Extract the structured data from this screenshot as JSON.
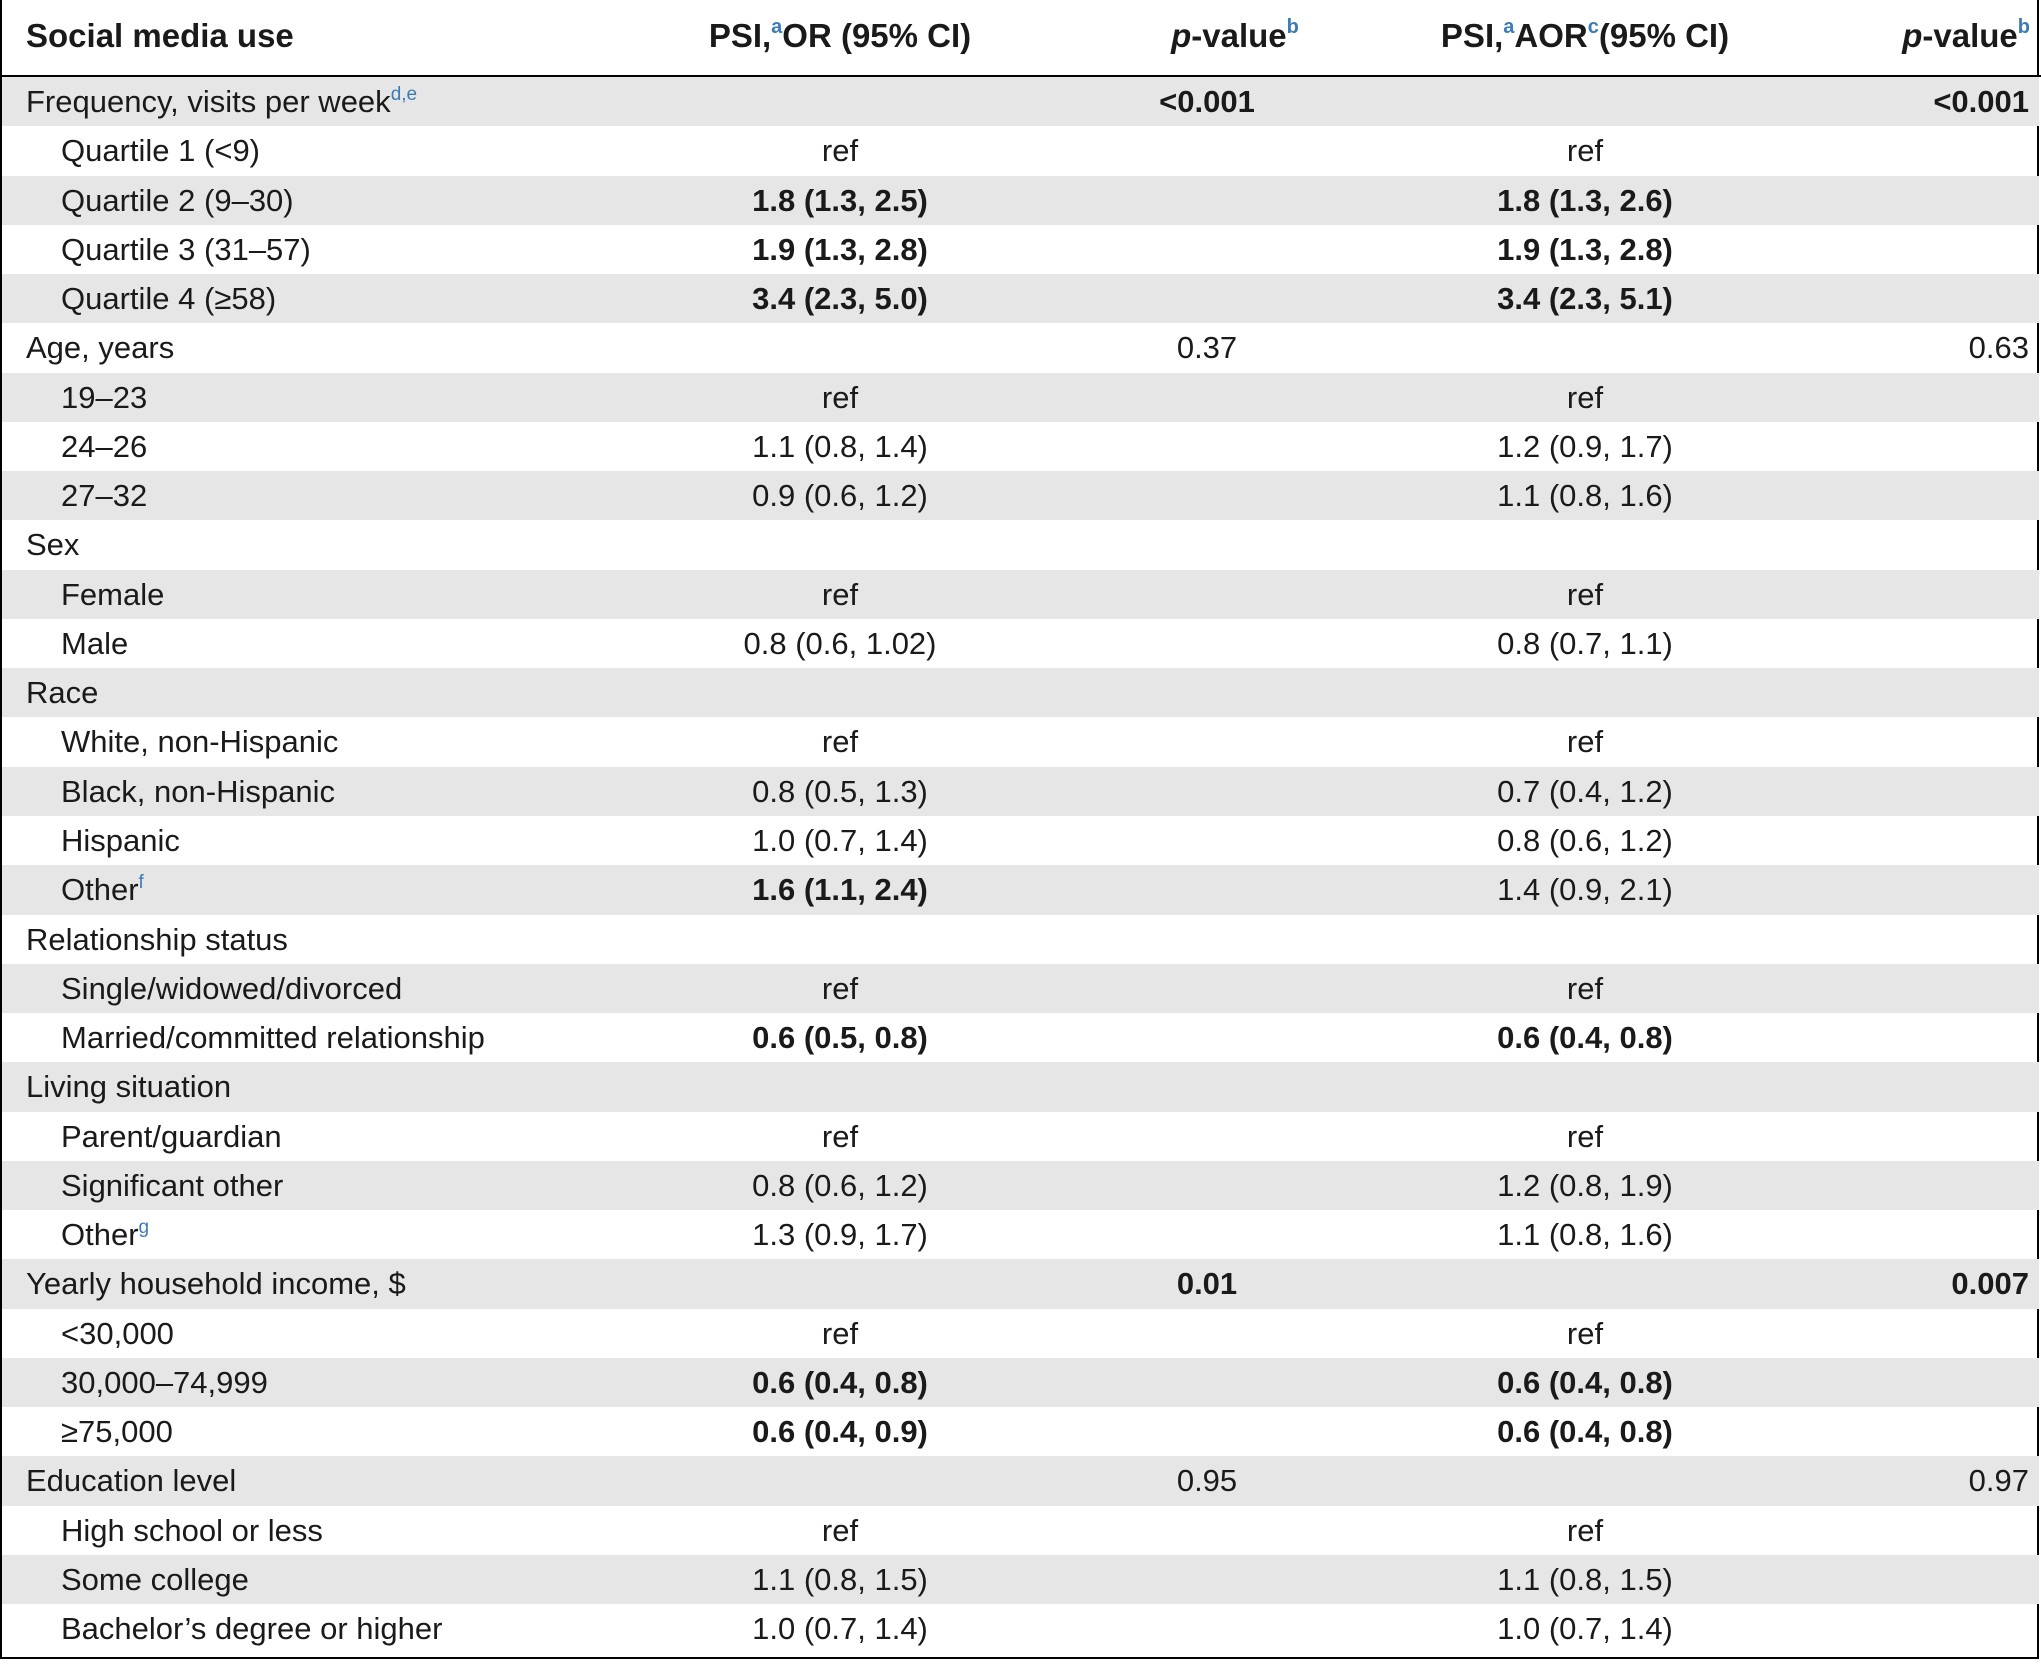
{
  "header": {
    "col0": "Social media use",
    "col1_prefix": "PSI,",
    "col1_sup": "a",
    "col1_suffix": "OR (95% CI)",
    "col2_italic": "p",
    "col2_rest": "-value",
    "col2_sup": "b",
    "col3_prefix": "PSI,",
    "col3_sup1": "a",
    "col3_mid": "AOR",
    "col3_sup2": "c",
    "col3_suffix": "(95% CI)",
    "col4_italic": "p",
    "col4_rest": "-value",
    "col4_sup": "b"
  },
  "rows": [
    {
      "label": "Frequency, visits per week",
      "sup": "d,e",
      "sub": false,
      "shade": true,
      "or": "",
      "or_bold": false,
      "p1": "<0.001",
      "p1_bold": true,
      "aor": "",
      "aor_bold": false,
      "p2": "<0.001",
      "p2_bold": true
    },
    {
      "label": "Quartile 1 (<9)",
      "sup": "",
      "sub": true,
      "shade": false,
      "or": "ref",
      "or_bold": false,
      "p1": "",
      "p1_bold": false,
      "aor": "ref",
      "aor_bold": false,
      "p2": "",
      "p2_bold": false
    },
    {
      "label": "Quartile 2 (9–30)",
      "sup": "",
      "sub": true,
      "shade": true,
      "or": "1.8 (1.3, 2.5)",
      "or_bold": true,
      "p1": "",
      "p1_bold": false,
      "aor": "1.8 (1.3, 2.6)",
      "aor_bold": true,
      "p2": "",
      "p2_bold": false
    },
    {
      "label": "Quartile 3 (31–57)",
      "sup": "",
      "sub": true,
      "shade": false,
      "or": "1.9 (1.3, 2.8)",
      "or_bold": true,
      "p1": "",
      "p1_bold": false,
      "aor": "1.9 (1.3, 2.8)",
      "aor_bold": true,
      "p2": "",
      "p2_bold": false
    },
    {
      "label": "Quartile 4 (≥58)",
      "sup": "",
      "sub": true,
      "shade": true,
      "or": "3.4 (2.3, 5.0)",
      "or_bold": true,
      "p1": "",
      "p1_bold": false,
      "aor": "3.4 (2.3, 5.1)",
      "aor_bold": true,
      "p2": "",
      "p2_bold": false
    },
    {
      "label": "Age, years",
      "sup": "",
      "sub": false,
      "shade": false,
      "or": "",
      "or_bold": false,
      "p1": "0.37",
      "p1_bold": false,
      "aor": "",
      "aor_bold": false,
      "p2": "0.63",
      "p2_bold": false
    },
    {
      "label": "19–23",
      "sup": "",
      "sub": true,
      "shade": true,
      "or": "ref",
      "or_bold": false,
      "p1": "",
      "p1_bold": false,
      "aor": "ref",
      "aor_bold": false,
      "p2": "",
      "p2_bold": false
    },
    {
      "label": "24–26",
      "sup": "",
      "sub": true,
      "shade": false,
      "or": "1.1 (0.8, 1.4)",
      "or_bold": false,
      "p1": "",
      "p1_bold": false,
      "aor": "1.2 (0.9, 1.7)",
      "aor_bold": false,
      "p2": "",
      "p2_bold": false
    },
    {
      "label": "27–32",
      "sup": "",
      "sub": true,
      "shade": true,
      "or": "0.9 (0.6, 1.2)",
      "or_bold": false,
      "p1": "",
      "p1_bold": false,
      "aor": "1.1 (0.8, 1.6)",
      "aor_bold": false,
      "p2": "",
      "p2_bold": false
    },
    {
      "label": "Sex",
      "sup": "",
      "sub": false,
      "shade": false,
      "or": "",
      "or_bold": false,
      "p1": "",
      "p1_bold": false,
      "aor": "",
      "aor_bold": false,
      "p2": "",
      "p2_bold": false
    },
    {
      "label": "Female",
      "sup": "",
      "sub": true,
      "shade": true,
      "or": "ref",
      "or_bold": false,
      "p1": "",
      "p1_bold": false,
      "aor": "ref",
      "aor_bold": false,
      "p2": "",
      "p2_bold": false
    },
    {
      "label": "Male",
      "sup": "",
      "sub": true,
      "shade": false,
      "or": "0.8 (0.6, 1.02)",
      "or_bold": false,
      "p1": "",
      "p1_bold": false,
      "aor": "0.8 (0.7, 1.1)",
      "aor_bold": false,
      "p2": "",
      "p2_bold": false
    },
    {
      "label": "Race",
      "sup": "",
      "sub": false,
      "shade": true,
      "or": "",
      "or_bold": false,
      "p1": "",
      "p1_bold": false,
      "aor": "",
      "aor_bold": false,
      "p2": "",
      "p2_bold": false
    },
    {
      "label": "White, non-Hispanic",
      "sup": "",
      "sub": true,
      "shade": false,
      "or": "ref",
      "or_bold": false,
      "p1": "",
      "p1_bold": false,
      "aor": "ref",
      "aor_bold": false,
      "p2": "",
      "p2_bold": false
    },
    {
      "label": "Black, non-Hispanic",
      "sup": "",
      "sub": true,
      "shade": true,
      "or": "0.8 (0.5, 1.3)",
      "or_bold": false,
      "p1": "",
      "p1_bold": false,
      "aor": "0.7 (0.4, 1.2)",
      "aor_bold": false,
      "p2": "",
      "p2_bold": false
    },
    {
      "label": "Hispanic",
      "sup": "",
      "sub": true,
      "shade": false,
      "or": "1.0 (0.7, 1.4)",
      "or_bold": false,
      "p1": "",
      "p1_bold": false,
      "aor": "0.8 (0.6, 1.2)",
      "aor_bold": false,
      "p2": "",
      "p2_bold": false
    },
    {
      "label": "Other",
      "sup": "f",
      "sub": true,
      "shade": true,
      "or": "1.6 (1.1, 2.4)",
      "or_bold": true,
      "p1": "",
      "p1_bold": false,
      "aor": "1.4 (0.9, 2.1)",
      "aor_bold": false,
      "p2": "",
      "p2_bold": false
    },
    {
      "label": "Relationship status",
      "sup": "",
      "sub": false,
      "shade": false,
      "or": "",
      "or_bold": false,
      "p1": "",
      "p1_bold": false,
      "aor": "",
      "aor_bold": false,
      "p2": "",
      "p2_bold": false
    },
    {
      "label": "Single/widowed/divorced",
      "sup": "",
      "sub": true,
      "shade": true,
      "or": "ref",
      "or_bold": false,
      "p1": "",
      "p1_bold": false,
      "aor": "ref",
      "aor_bold": false,
      "p2": "",
      "p2_bold": false
    },
    {
      "label": "Married/committed relationship",
      "sup": "",
      "sub": true,
      "shade": false,
      "or": "0.6 (0.5, 0.8)",
      "or_bold": true,
      "p1": "",
      "p1_bold": false,
      "aor": "0.6 (0.4, 0.8)",
      "aor_bold": true,
      "p2": "",
      "p2_bold": false
    },
    {
      "label": "Living situation",
      "sup": "",
      "sub": false,
      "shade": true,
      "or": "",
      "or_bold": false,
      "p1": "",
      "p1_bold": false,
      "aor": "",
      "aor_bold": false,
      "p2": "",
      "p2_bold": false
    },
    {
      "label": "Parent/guardian",
      "sup": "",
      "sub": true,
      "shade": false,
      "or": "ref",
      "or_bold": false,
      "p1": "",
      "p1_bold": false,
      "aor": "ref",
      "aor_bold": false,
      "p2": "",
      "p2_bold": false
    },
    {
      "label": "Significant other",
      "sup": "",
      "sub": true,
      "shade": true,
      "or": "0.8 (0.6, 1.2)",
      "or_bold": false,
      "p1": "",
      "p1_bold": false,
      "aor": "1.2 (0.8, 1.9)",
      "aor_bold": false,
      "p2": "",
      "p2_bold": false
    },
    {
      "label": "Other",
      "sup": "g",
      "sub": true,
      "shade": false,
      "or": "1.3 (0.9, 1.7)",
      "or_bold": false,
      "p1": "",
      "p1_bold": false,
      "aor": "1.1 (0.8, 1.6)",
      "aor_bold": false,
      "p2": "",
      "p2_bold": false
    },
    {
      "label": "Yearly household income, $",
      "sup": "",
      "sub": false,
      "shade": true,
      "or": "",
      "or_bold": false,
      "p1": "0.01",
      "p1_bold": true,
      "aor": "",
      "aor_bold": false,
      "p2": "0.007",
      "p2_bold": true
    },
    {
      "label": "<30,000",
      "sup": "",
      "sub": true,
      "shade": false,
      "or": "ref",
      "or_bold": false,
      "p1": "",
      "p1_bold": false,
      "aor": "ref",
      "aor_bold": false,
      "p2": "",
      "p2_bold": false
    },
    {
      "label": "30,000–74,999",
      "sup": "",
      "sub": true,
      "shade": true,
      "or": "0.6 (0.4, 0.8)",
      "or_bold": true,
      "p1": "",
      "p1_bold": false,
      "aor": "0.6 (0.4, 0.8)",
      "aor_bold": true,
      "p2": "",
      "p2_bold": false
    },
    {
      "label": "≥75,000",
      "sup": "",
      "sub": true,
      "shade": false,
      "or": "0.6 (0.4, 0.9)",
      "or_bold": true,
      "p1": "",
      "p1_bold": false,
      "aor": "0.6 (0.4, 0.8)",
      "aor_bold": true,
      "p2": "",
      "p2_bold": false
    },
    {
      "label": "Education level",
      "sup": "",
      "sub": false,
      "shade": true,
      "or": "",
      "or_bold": false,
      "p1": "0.95",
      "p1_bold": false,
      "aor": "",
      "aor_bold": false,
      "p2": "0.97",
      "p2_bold": false
    },
    {
      "label": "High school or less",
      "sup": "",
      "sub": true,
      "shade": false,
      "or": "ref",
      "or_bold": false,
      "p1": "",
      "p1_bold": false,
      "aor": "ref",
      "aor_bold": false,
      "p2": "",
      "p2_bold": false
    },
    {
      "label": "Some college",
      "sup": "",
      "sub": true,
      "shade": true,
      "or": "1.1 (0.8, 1.5)",
      "or_bold": false,
      "p1": "",
      "p1_bold": false,
      "aor": "1.1 (0.8, 1.5)",
      "aor_bold": false,
      "p2": "",
      "p2_bold": false
    },
    {
      "label": "Bachelor’s degree or higher",
      "sup": "",
      "sub": true,
      "shade": false,
      "or": "1.0 (0.7, 1.4)",
      "or_bold": false,
      "p1": "",
      "p1_bold": false,
      "aor": "1.0 (0.7, 1.4)",
      "aor_bold": false,
      "p2": "",
      "p2_bold": false
    }
  ]
}
